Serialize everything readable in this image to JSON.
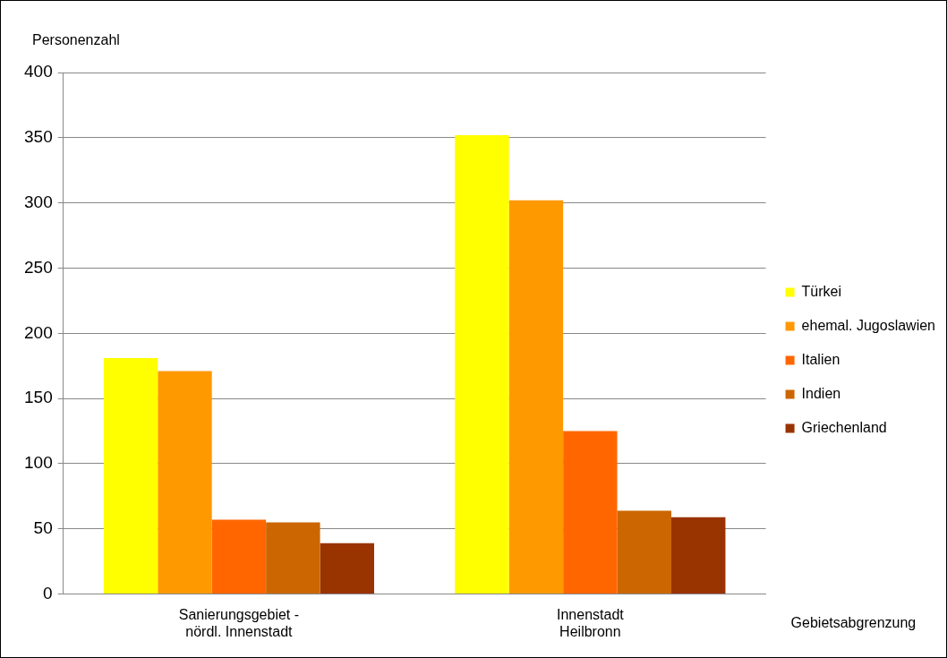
{
  "chart_data": {
    "type": "bar",
    "ylabel": "Personenzahl",
    "xlabel": "Gebietsabgrenzung",
    "categories": [
      "Sanierungsgebiet -\nnördl. Innenstadt",
      "Innenstadt\nHeilbronn"
    ],
    "series": [
      {
        "name": "Türkei",
        "color": "#ffff00",
        "values": [
          181,
          352
        ]
      },
      {
        "name": "ehemal. Jugoslawien",
        "color": "#ff9900",
        "values": [
          171,
          302
        ]
      },
      {
        "name": "Italien",
        "color": "#ff6600",
        "values": [
          57,
          125
        ]
      },
      {
        "name": "Indien",
        "color": "#cc6600",
        "values": [
          55,
          64
        ]
      },
      {
        "name": "Griechenland",
        "color": "#993300",
        "values": [
          39,
          59
        ]
      }
    ],
    "ylim": [
      0,
      400
    ],
    "yticks": [
      0,
      50,
      100,
      150,
      200,
      250,
      300,
      350,
      400
    ],
    "grid": "y",
    "legend": "right"
  }
}
